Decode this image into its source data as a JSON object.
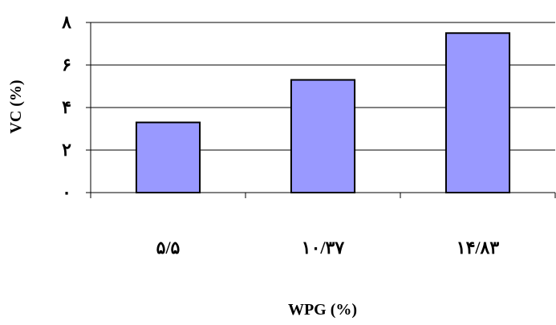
{
  "chart_data": {
    "type": "bar",
    "categories": [
      "۵/۵",
      "۱۰/۳۷",
      "۱۴/۸۳"
    ],
    "values": [
      3.3,
      5.3,
      7.5
    ],
    "ylim": [
      0,
      8
    ],
    "yticks": [
      0,
      2,
      4,
      6,
      8
    ],
    "ytick_labels": [
      "۰",
      "۲",
      "۴",
      "۶",
      "۸"
    ],
    "xlabel": "WPG (%)",
    "ylabel": "VC (%)",
    "grid": true,
    "colors": {
      "bar_fill": "#9999ff",
      "bar_stroke": "#000000",
      "grid": "#000000"
    }
  }
}
